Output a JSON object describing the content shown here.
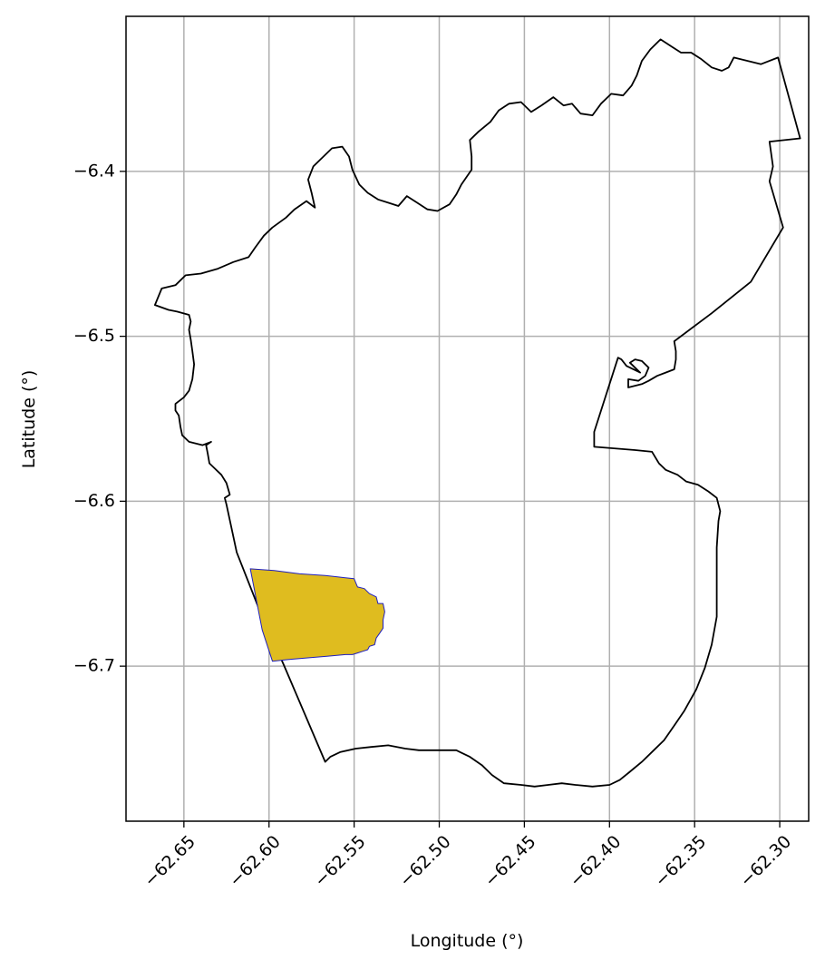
{
  "chart_data": {
    "type": "map",
    "xlabel": "Longitude (°)",
    "ylabel": "Latitude (°)",
    "xlim": [
      -62.684,
      -62.283
    ],
    "ylim": [
      -6.794,
      -6.306
    ],
    "grid": true,
    "x_ticks": [
      {
        "value": -62.65,
        "label": "−62.65"
      },
      {
        "value": -62.6,
        "label": "−62.60"
      },
      {
        "value": -62.55,
        "label": "−62.55"
      },
      {
        "value": -62.5,
        "label": "−62.50"
      },
      {
        "value": -62.45,
        "label": "−62.45"
      },
      {
        "value": -62.4,
        "label": "−62.40"
      },
      {
        "value": -62.35,
        "label": "−62.35"
      },
      {
        "value": -62.3,
        "label": "−62.30"
      }
    ],
    "y_ticks": [
      {
        "value": -6.4,
        "label": "−6.4"
      },
      {
        "value": -6.5,
        "label": "−6.5"
      },
      {
        "value": -6.6,
        "label": "−6.6"
      },
      {
        "value": -6.7,
        "label": "−6.7"
      }
    ],
    "colors": {
      "outline": "#000000",
      "highlight_fill": "#dfbc1f",
      "highlight_edge": "#1f1fbf",
      "grid": "#b0b0b0"
    },
    "shapes": [
      {
        "name": "outer-boundary",
        "fill": "none",
        "stroke": "#000000",
        "coords": [
          [
            -62.667,
            -6.481
          ],
          [
            -62.663,
            -6.471
          ],
          [
            -62.655,
            -6.469
          ],
          [
            -62.649,
            -6.463
          ],
          [
            -62.64,
            -6.462
          ],
          [
            -62.63,
            -6.459
          ],
          [
            -62.621,
            -6.455
          ],
          [
            -62.612,
            -6.452
          ],
          [
            -62.608,
            -6.446
          ],
          [
            -62.603,
            -6.439
          ],
          [
            -62.598,
            -6.434
          ],
          [
            -62.59,
            -6.428
          ],
          [
            -62.585,
            -6.423
          ],
          [
            -62.578,
            -6.418
          ],
          [
            -62.573,
            -6.422
          ],
          [
            -62.575,
            -6.413
          ],
          [
            -62.577,
            -6.405
          ],
          [
            -62.574,
            -6.397
          ],
          [
            -62.568,
            -6.391
          ],
          [
            -62.563,
            -6.386
          ],
          [
            -62.557,
            -6.385
          ],
          [
            -62.553,
            -6.391
          ],
          [
            -62.551,
            -6.399
          ],
          [
            -62.547,
            -6.408
          ],
          [
            -62.542,
            -6.413
          ],
          [
            -62.536,
            -6.417
          ],
          [
            -62.53,
            -6.419
          ],
          [
            -62.524,
            -6.421
          ],
          [
            -62.519,
            -6.415
          ],
          [
            -62.513,
            -6.419
          ],
          [
            -62.507,
            -6.423
          ],
          [
            -62.501,
            -6.424
          ],
          [
            -62.494,
            -6.42
          ],
          [
            -62.49,
            -6.414
          ],
          [
            -62.487,
            -6.408
          ],
          [
            -62.481,
            -6.399
          ],
          [
            -62.481,
            -6.391
          ],
          [
            -62.482,
            -6.381
          ],
          [
            -62.477,
            -6.376
          ],
          [
            -62.47,
            -6.37
          ],
          [
            -62.465,
            -6.363
          ],
          [
            -62.459,
            -6.359
          ],
          [
            -62.452,
            -6.358
          ],
          [
            -62.446,
            -6.364
          ],
          [
            -62.44,
            -6.36
          ],
          [
            -62.433,
            -6.355
          ],
          [
            -62.427,
            -6.36
          ],
          [
            -62.422,
            -6.359
          ],
          [
            -62.417,
            -6.365
          ],
          [
            -62.41,
            -6.366
          ],
          [
            -62.405,
            -6.359
          ],
          [
            -62.399,
            -6.353
          ],
          [
            -62.392,
            -6.354
          ],
          [
            -62.387,
            -6.348
          ],
          [
            -62.384,
            -6.342
          ],
          [
            -62.381,
            -6.333
          ],
          [
            -62.376,
            -6.326
          ],
          [
            -62.37,
            -6.32
          ],
          [
            -62.364,
            -6.324
          ],
          [
            -62.358,
            -6.328
          ],
          [
            -62.352,
            -6.328
          ],
          [
            -62.346,
            -6.332
          ],
          [
            -62.34,
            -6.337
          ],
          [
            -62.334,
            -6.339
          ],
          [
            -62.33,
            -6.337
          ],
          [
            -62.327,
            -6.331
          ],
          [
            -62.311,
            -6.335
          ],
          [
            -62.301,
            -6.331
          ],
          [
            -62.288,
            -6.38
          ],
          [
            -62.306,
            -6.382
          ],
          [
            -62.304,
            -6.397
          ],
          [
            -62.306,
            -6.406
          ],
          [
            -62.298,
            -6.434
          ],
          [
            -62.317,
            -6.467
          ],
          [
            -62.34,
            -6.486
          ],
          [
            -62.362,
            -6.503
          ],
          [
            -62.361,
            -6.509
          ],
          [
            -62.361,
            -6.514
          ],
          [
            -62.362,
            -6.52
          ],
          [
            -62.367,
            -6.522
          ],
          [
            -62.372,
            -6.524
          ],
          [
            -62.377,
            -6.527
          ],
          [
            -62.381,
            -6.529
          ],
          [
            -62.385,
            -6.53
          ],
          [
            -62.389,
            -6.531
          ],
          [
            -62.389,
            -6.526
          ],
          [
            -62.383,
            -6.527
          ],
          [
            -62.379,
            -6.524
          ],
          [
            -62.377,
            -6.519
          ],
          [
            -62.381,
            -6.515
          ],
          [
            -62.385,
            -6.514
          ],
          [
            -62.388,
            -6.516
          ],
          [
            -62.385,
            -6.519
          ],
          [
            -62.382,
            -6.522
          ],
          [
            -62.39,
            -6.518
          ],
          [
            -62.393,
            -6.514
          ],
          [
            -62.395,
            -6.513
          ],
          [
            -62.409,
            -6.558
          ],
          [
            -62.409,
            -6.567
          ],
          [
            -62.385,
            -6.569
          ],
          [
            -62.375,
            -6.57
          ],
          [
            -62.371,
            -6.577
          ],
          [
            -62.367,
            -6.581
          ],
          [
            -62.36,
            -6.584
          ],
          [
            -62.355,
            -6.588
          ],
          [
            -62.348,
            -6.59
          ],
          [
            -62.342,
            -6.594
          ],
          [
            -62.337,
            -6.598
          ],
          [
            -62.335,
            -6.606
          ],
          [
            -62.336,
            -6.612
          ],
          [
            -62.337,
            -6.628
          ],
          [
            -62.337,
            -6.652
          ],
          [
            -62.337,
            -6.67
          ],
          [
            -62.34,
            -6.687
          ],
          [
            -62.344,
            -6.701
          ],
          [
            -62.349,
            -6.714
          ],
          [
            -62.356,
            -6.727
          ],
          [
            -62.362,
            -6.736
          ],
          [
            -62.368,
            -6.745
          ],
          [
            -62.375,
            -6.752
          ],
          [
            -62.381,
            -6.758
          ],
          [
            -62.388,
            -6.764
          ],
          [
            -62.394,
            -6.769
          ],
          [
            -62.4,
            -6.772
          ],
          [
            -62.41,
            -6.773
          ],
          [
            -62.42,
            -6.772
          ],
          [
            -62.428,
            -6.771
          ],
          [
            -62.436,
            -6.772
          ],
          [
            -62.444,
            -6.773
          ],
          [
            -62.452,
            -6.772
          ],
          [
            -62.462,
            -6.771
          ],
          [
            -62.469,
            -6.766
          ],
          [
            -62.475,
            -6.76
          ],
          [
            -62.482,
            -6.755
          ],
          [
            -62.49,
            -6.751
          ],
          [
            -62.497,
            -6.751
          ],
          [
            -62.504,
            -6.751
          ],
          [
            -62.512,
            -6.751
          ],
          [
            -62.52,
            -6.75
          ],
          [
            -62.53,
            -6.748
          ],
          [
            -62.54,
            -6.749
          ],
          [
            -62.549,
            -6.75
          ],
          [
            -62.558,
            -6.752
          ],
          [
            -62.564,
            -6.755
          ],
          [
            -62.567,
            -6.758
          ],
          [
            -62.591,
            -6.7
          ],
          [
            -62.606,
            -6.665
          ],
          [
            -62.619,
            -6.631
          ],
          [
            -62.625,
            -6.602
          ],
          [
            -62.626,
            -6.598
          ],
          [
            -62.623,
            -6.596
          ],
          [
            -62.625,
            -6.589
          ],
          [
            -62.628,
            -6.584
          ],
          [
            -62.632,
            -6.58
          ],
          [
            -62.635,
            -6.577
          ],
          [
            -62.636,
            -6.571
          ],
          [
            -62.637,
            -6.566
          ],
          [
            -62.634,
            -6.564
          ],
          [
            -62.639,
            -6.566
          ],
          [
            -62.647,
            -6.564
          ],
          [
            -62.651,
            -6.56
          ],
          [
            -62.652,
            -6.555
          ],
          [
            -62.653,
            -6.548
          ],
          [
            -62.655,
            -6.545
          ],
          [
            -62.655,
            -6.541
          ],
          [
            -62.65,
            -6.537
          ],
          [
            -62.647,
            -6.533
          ],
          [
            -62.645,
            -6.526
          ],
          [
            -62.644,
            -6.517
          ],
          [
            -62.645,
            -6.509
          ],
          [
            -62.646,
            -6.502
          ],
          [
            -62.647,
            -6.496
          ],
          [
            -62.646,
            -6.491
          ],
          [
            -62.647,
            -6.487
          ],
          [
            -62.654,
            -6.485
          ],
          [
            -62.659,
            -6.484
          ],
          [
            -62.667,
            -6.481
          ]
        ]
      },
      {
        "name": "highlighted-area",
        "fill": "#dfbc1f",
        "stroke": "#1f1fbf",
        "coords": [
          [
            -62.611,
            -6.641
          ],
          [
            -62.597,
            -6.642
          ],
          [
            -62.582,
            -6.644
          ],
          [
            -62.567,
            -6.645
          ],
          [
            -62.55,
            -6.647
          ],
          [
            -62.548,
            -6.652
          ],
          [
            -62.544,
            -6.653
          ],
          [
            -62.541,
            -6.656
          ],
          [
            -62.537,
            -6.658
          ],
          [
            -62.536,
            -6.662
          ],
          [
            -62.533,
            -6.662
          ],
          [
            -62.532,
            -6.667
          ],
          [
            -62.533,
            -6.672
          ],
          [
            -62.533,
            -6.677
          ],
          [
            -62.535,
            -6.68
          ],
          [
            -62.537,
            -6.683
          ],
          [
            -62.538,
            -6.687
          ],
          [
            -62.541,
            -6.688
          ],
          [
            -62.542,
            -6.69
          ],
          [
            -62.545,
            -6.691
          ],
          [
            -62.548,
            -6.692
          ],
          [
            -62.551,
            -6.693
          ],
          [
            -62.555,
            -6.693
          ],
          [
            -62.566,
            -6.694
          ],
          [
            -62.578,
            -6.695
          ],
          [
            -62.589,
            -6.696
          ],
          [
            -62.598,
            -6.697
          ],
          [
            -62.604,
            -6.678
          ],
          [
            -62.611,
            -6.641
          ]
        ]
      }
    ]
  }
}
